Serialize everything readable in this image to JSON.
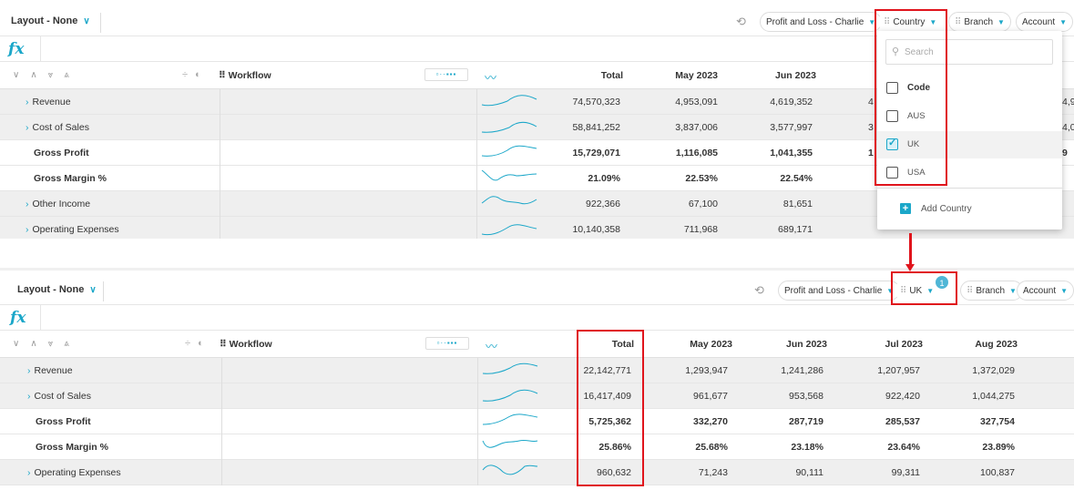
{
  "top": {
    "toolbar": {
      "layout_label": "Layout - None",
      "scenario_label": "Profit and Loss - Charlie",
      "dim1_label": "Country",
      "dim2_label": "Branch",
      "dim3_label": "Account"
    },
    "fx_label": "fx",
    "header": {
      "workflow": "Workflow",
      "columns": [
        "Total",
        "May 2023",
        "Jun 2023"
      ]
    },
    "rows": [
      {
        "label": "Revenue",
        "expandable": true,
        "bold": false,
        "values": [
          "74,570,323",
          "4,953,091",
          "4,619,352"
        ],
        "clipped": [
          "4",
          "4,9"
        ]
      },
      {
        "label": "Cost of Sales",
        "expandable": true,
        "bold": false,
        "values": [
          "58,841,252",
          "3,837,006",
          "3,577,997"
        ],
        "clipped": [
          "3",
          "4,0"
        ]
      },
      {
        "label": "Gross Profit",
        "expandable": false,
        "bold": true,
        "values": [
          "15,729,071",
          "1,116,085",
          "1,041,355"
        ],
        "clipped": [
          "1",
          "9"
        ]
      },
      {
        "label": "Gross Margin %",
        "expandable": false,
        "bold": true,
        "values": [
          "21.09%",
          "22.53%",
          "22.54%"
        ],
        "clipped": [
          "",
          ""
        ]
      },
      {
        "label": "Other Income",
        "expandable": true,
        "bold": false,
        "values": [
          "922,366",
          "67,100",
          "81,651"
        ],
        "clipped": [
          "",
          ""
        ]
      },
      {
        "label": "Operating Expenses",
        "expandable": true,
        "bold": false,
        "values": [
          "10,140,358",
          "711,968",
          "689,171"
        ],
        "clipped": [
          "",
          ""
        ]
      }
    ],
    "dropdown": {
      "search_placeholder": "Search",
      "header_option": "Code",
      "options": [
        {
          "label": "AUS",
          "checked": false
        },
        {
          "label": "UK",
          "checked": true
        },
        {
          "label": "USA",
          "checked": false
        }
      ],
      "add_label": "Add Country"
    }
  },
  "bottom": {
    "toolbar": {
      "layout_label": "Layout - None",
      "scenario_label": "Profit and Loss - Charlie",
      "dim1_label": "UK",
      "dim1_badge": "1",
      "dim2_label": "Branch",
      "dim3_label": "Account"
    },
    "fx_label": "fx",
    "header": {
      "workflow": "Workflow",
      "columns": [
        "Total",
        "May 2023",
        "Jun 2023",
        "Jul 2023",
        "Aug 2023"
      ]
    },
    "rows": [
      {
        "label": "Revenue",
        "expandable": true,
        "bold": false,
        "values": [
          "22,142,771",
          "1,293,947",
          "1,241,286",
          "1,207,957",
          "1,372,029"
        ]
      },
      {
        "label": "Cost of Sales",
        "expandable": true,
        "bold": false,
        "values": [
          "16,417,409",
          "961,677",
          "953,568",
          "922,420",
          "1,044,275"
        ]
      },
      {
        "label": "Gross Profit",
        "expandable": false,
        "bold": true,
        "values": [
          "5,725,362",
          "332,270",
          "287,719",
          "285,537",
          "327,754"
        ]
      },
      {
        "label": "Gross Margin %",
        "expandable": false,
        "bold": true,
        "values": [
          "25.86%",
          "25.68%",
          "23.18%",
          "23.64%",
          "23.89%"
        ]
      },
      {
        "label": "Operating Expenses",
        "expandable": true,
        "bold": false,
        "values": [
          "960,632",
          "71,243",
          "90,111",
          "99,311",
          "100,837"
        ]
      }
    ]
  },
  "colors": {
    "accent": "#1ba7c9",
    "highlight_red": "#e0141c",
    "row_shade": "#efefef"
  }
}
